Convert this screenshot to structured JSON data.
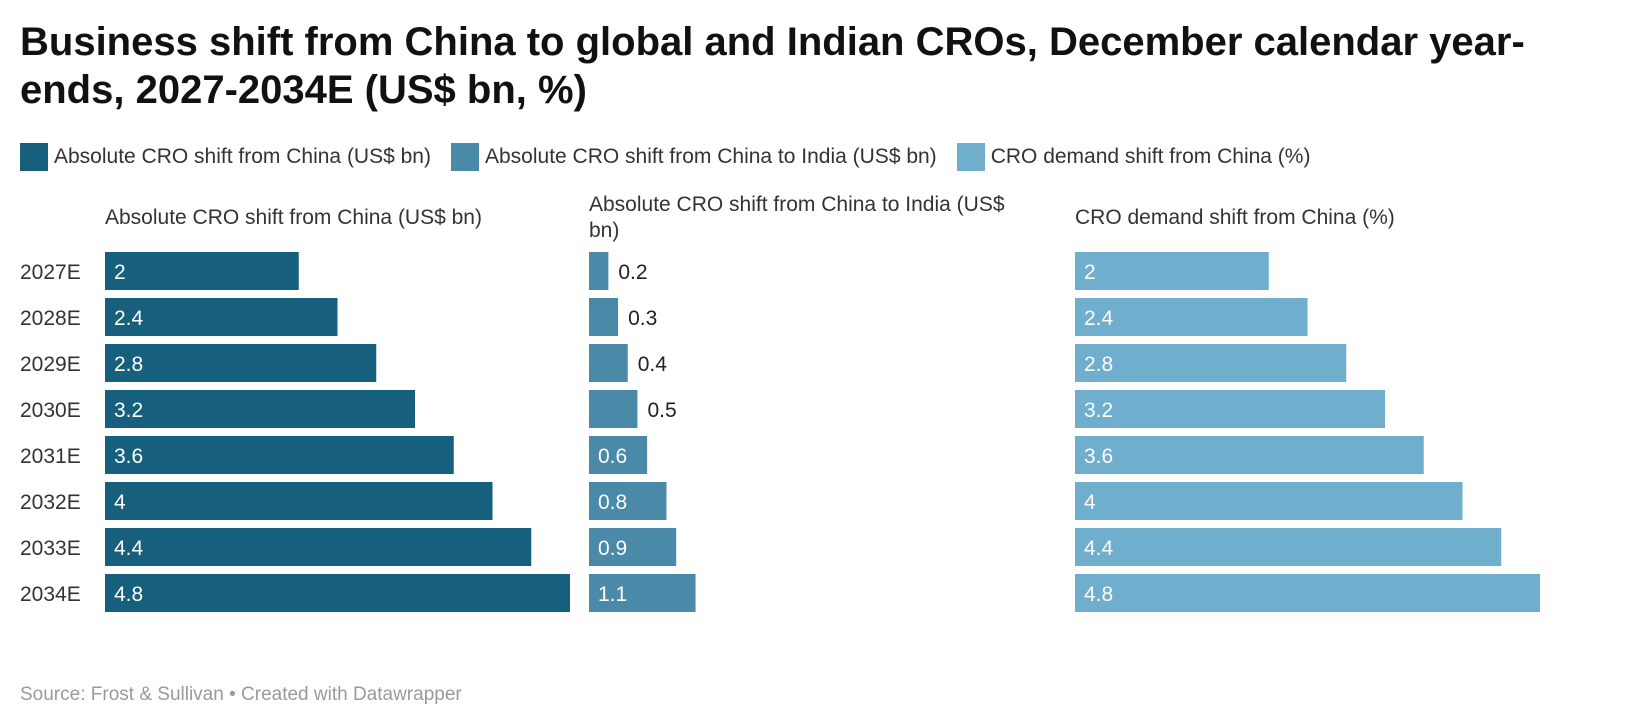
{
  "title": "Business shift from China to global and Indian CROs, December calendar year-ends, 2027-2034E (US$ bn, %)",
  "legend": [
    {
      "label": "Absolute CRO shift from China (US$ bn)",
      "color": "#17607d"
    },
    {
      "label": "Absolute CRO shift from China to India (US$ bn)",
      "color": "#4a8aa8"
    },
    {
      "label": "CRO demand shift from China (%)",
      "color": "#6faecc"
    }
  ],
  "source": "Source: Frost & Sullivan • Created with Datawrapper",
  "chart_data": {
    "type": "bar",
    "orientation": "horizontal",
    "categories": [
      "2027E",
      "2028E",
      "2029E",
      "2030E",
      "2031E",
      "2032E",
      "2033E",
      "2034E"
    ],
    "series": [
      {
        "name": "Absolute CRO shift from China (US$ bn)",
        "title_lines": [
          "Absolute CRO shift from China (US$ bn)"
        ],
        "color": "#17607d",
        "values": [
          2,
          2.4,
          2.8,
          3.2,
          3.6,
          4,
          4.4,
          4.8
        ],
        "xlim": [
          0,
          4.8
        ]
      },
      {
        "name": "Absolute CRO shift from China to India (US$ bn)",
        "title_lines": [
          "Absolute CRO shift from China to India (US$",
          "bn)"
        ],
        "color": "#4a8aa8",
        "values": [
          0.2,
          0.3,
          0.4,
          0.5,
          0.6,
          0.8,
          0.9,
          1.1
        ],
        "xlim": [
          0,
          4.8
        ]
      },
      {
        "name": "CRO demand shift from China (%)",
        "title_lines": [
          "CRO demand shift from China (%)"
        ],
        "color": "#6faecc",
        "values": [
          2,
          2.4,
          2.8,
          3.2,
          3.6,
          4,
          4.4,
          4.8
        ],
        "xlim": [
          0,
          4.8
        ]
      }
    ],
    "grid": false,
    "legend_position": "top-left"
  }
}
